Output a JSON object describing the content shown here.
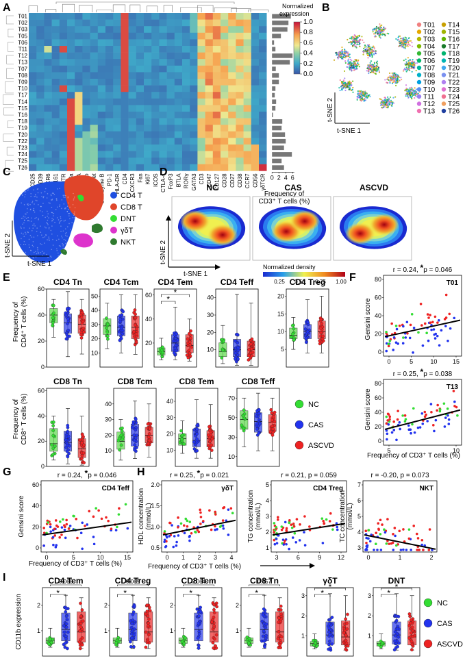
{
  "panel_labels": {
    "A": "A",
    "B": "B",
    "C": "C",
    "D": "D",
    "E": "E",
    "F": "F",
    "G": "G",
    "H": "H",
    "I": "I"
  },
  "colors": {
    "NC": "#33dd33",
    "CAS": "#2233ee",
    "ASCVD": "#ee2222",
    "nc_box": "#66dd55",
    "cas_box": "#3344ee",
    "ascvd_box": "#ee3333"
  },
  "panelA": {
    "legend_title": "Normalized expression",
    "colorbar_ticks": [
      "1.0",
      "0.8",
      "0.6",
      "0.4",
      "0.2",
      "0.0"
    ],
    "row_labels": [
      "T01",
      "T02",
      "T03",
      "T05",
      "T06",
      "T11",
      "T12",
      "T13",
      "T07",
      "T08",
      "T09",
      "T10",
      "T17",
      "T14",
      "T15",
      "T16",
      "T18",
      "T19",
      "T20",
      "T22",
      "T23",
      "T24",
      "T25",
      "T26"
    ],
    "col_labels": [
      "CD25",
      "CD39",
      "CCR6",
      "CD161",
      "GITR",
      "CD8a",
      "CD45RA",
      "CD11b",
      "Tbet",
      "Granzyme B",
      "PD-1",
      "HLA-DR",
      "CD4",
      "CXCR3",
      "Fas",
      "Ki67",
      "ICOS",
      "CTLA-4",
      "FoxP3",
      "BTLA",
      "RORγ",
      "GATA3",
      "CD3",
      "CD47",
      "CD127",
      "CD28",
      "CD27",
      "CD38",
      "CCR7",
      "CD56",
      "γδTCR"
    ],
    "bar_axis_ticks": [
      "0",
      "2",
      "4",
      "6"
    ],
    "bar_axis_label": "Frequency of CD3⁺ T cells (%)",
    "frequency_bars": [
      5.5,
      4.8,
      4.5,
      2.6,
      0.6,
      1.0,
      6.0,
      5.2,
      1.1,
      2.0,
      2.0,
      1.0,
      0.8,
      1.2,
      1.0,
      0.3,
      3.0,
      2.8,
      3.8,
      4.0,
      3.5,
      5.8,
      2.8,
      3.5
    ]
  },
  "panelB": {
    "xlabel": "t-SNE 1",
    "ylabel": "t-SNE 2",
    "clusters": [
      {
        "name": "T01",
        "color": "#f08080"
      },
      {
        "name": "T02",
        "color": "#e6a800"
      },
      {
        "name": "T03",
        "color": "#b5b800"
      },
      {
        "name": "T04",
        "color": "#7fb800"
      },
      {
        "name": "T05",
        "color": "#33b833"
      },
      {
        "name": "T06",
        "color": "#00b86b"
      },
      {
        "name": "T07",
        "color": "#00b89c"
      },
      {
        "name": "T08",
        "color": "#00b0c8"
      },
      {
        "name": "T09",
        "color": "#00a0e0"
      },
      {
        "name": "T10",
        "color": "#5b8ff0"
      },
      {
        "name": "T11",
        "color": "#9b7ff0"
      },
      {
        "name": "T12",
        "color": "#d070e0"
      },
      {
        "name": "T13",
        "color": "#f070b0"
      },
      {
        "name": "T14",
        "color": "#c8a000"
      },
      {
        "name": "T15",
        "color": "#a0b400"
      },
      {
        "name": "T16",
        "color": "#60b400"
      },
      {
        "name": "T17",
        "color": "#1a7a2a"
      },
      {
        "name": "T18",
        "color": "#00b470"
      },
      {
        "name": "T19",
        "color": "#00b4b4"
      },
      {
        "name": "T20",
        "color": "#40a8f0"
      },
      {
        "name": "T21",
        "color": "#7a90f0"
      },
      {
        "name": "T22",
        "color": "#b080f0"
      },
      {
        "name": "T23",
        "color": "#e070d0"
      },
      {
        "name": "T24",
        "color": "#f07090"
      },
      {
        "name": "T25",
        "color": "#f0a060"
      },
      {
        "name": "T26",
        "color": "#1f3fa0"
      }
    ]
  },
  "panelC": {
    "xlabel": "t-SNE 1",
    "ylabel": "t-SNE 2",
    "legend": [
      {
        "name": "CD4 T",
        "color": "#1f4fe0"
      },
      {
        "name": "CD8 T",
        "color": "#e0452a"
      },
      {
        "name": "DNT",
        "color": "#33dd33"
      },
      {
        "name": "γδT",
        "color": "#dd33cc"
      },
      {
        "name": "NKT",
        "color": "#2f7a2f"
      }
    ]
  },
  "panelD": {
    "titles": [
      "NC",
      "CAS",
      "ASCVD"
    ],
    "xlabel": "t-SNE 1",
    "ylabel": "t-SNE 2",
    "colorbar_title": "Normalized density",
    "colorbar_ticks": [
      "0.25",
      "0.50",
      "0.75",
      "1.00"
    ]
  },
  "panelE": {
    "row1_ylabel": "Frequency of CD4⁺ T cells (%)",
    "row2_ylabel": "Frequency of CD8⁺ T cells (%)",
    "legend": [
      "NC",
      "CAS",
      "ASCVD"
    ],
    "plots": [
      {
        "title": "CD4 Tn",
        "ylim": [
          0,
          60
        ],
        "ticks": [
          "0",
          "20",
          "40",
          "60"
        ],
        "medians": [
          40,
          34,
          33
        ],
        "q1": [
          34,
          26,
          26
        ],
        "q3": [
          45,
          41,
          40
        ],
        "lo": [
          23,
          8,
          10
        ],
        "hi": [
          52,
          58,
          52
        ],
        "sig": []
      },
      {
        "title": "CD4 Tcm",
        "ylim": [
          0,
          55
        ],
        "ticks": [
          "10",
          "20",
          "30",
          "40",
          "50"
        ],
        "medians": [
          29,
          28,
          28
        ],
        "q1": [
          23,
          22,
          20
        ],
        "q3": [
          34,
          36,
          36
        ],
        "lo": [
          13,
          10,
          9
        ],
        "hi": [
          45,
          51,
          51
        ],
        "sig": []
      },
      {
        "title": "CD4 Tem",
        "ylim": [
          0,
          65
        ],
        "ticks": [
          "20",
          "40",
          "60"
        ],
        "medians": [
          13,
          20,
          18
        ],
        "q1": [
          10,
          13,
          12
        ],
        "q3": [
          16,
          27,
          27
        ],
        "lo": [
          6,
          6,
          5
        ],
        "hi": [
          24,
          50,
          40
        ],
        "sig": [
          "*",
          "*"
        ]
      },
      {
        "title": "CD4 Teff",
        "ylim": [
          0,
          45
        ],
        "ticks": [
          "10",
          "20",
          "30",
          "40"
        ],
        "medians": [
          9,
          10,
          10
        ],
        "q1": [
          6,
          6,
          6
        ],
        "q3": [
          14,
          16,
          15
        ],
        "lo": [
          2,
          1,
          1
        ],
        "hi": [
          24,
          42,
          37
        ],
        "sig": []
      },
      {
        "title": "CD4 Treg",
        "ylim": [
          0,
          22
        ],
        "ticks": [
          "5",
          "10",
          "15",
          "20"
        ],
        "medians": [
          9,
          10,
          10
        ],
        "q1": [
          8,
          8,
          8
        ],
        "q3": [
          11,
          12,
          13
        ],
        "lo": [
          5,
          4,
          4
        ],
        "hi": [
          14,
          19,
          20
        ],
        "sig": []
      },
      {
        "title": "CD8 Tn",
        "ylim": [
          0,
          62
        ],
        "ticks": [
          "0",
          "20",
          "40",
          "60"
        ],
        "medians": [
          18,
          19,
          14
        ],
        "q1": [
          12,
          12,
          7
        ],
        "q3": [
          30,
          28,
          22
        ],
        "lo": [
          5,
          2,
          1
        ],
        "hi": [
          40,
          46,
          40
        ],
        "sig": []
      },
      {
        "title": "CD8 Tcm",
        "ylim": [
          0,
          50
        ],
        "ticks": [
          "10",
          "20",
          "30",
          "40"
        ],
        "medians": [
          16,
          20,
          20
        ],
        "q1": [
          11,
          13,
          15
        ],
        "q3": [
          22,
          27,
          25
        ],
        "lo": [
          4,
          5,
          6
        ],
        "hi": [
          30,
          42,
          40
        ],
        "sig": []
      },
      {
        "title": "CD8 Tem",
        "ylim": [
          0,
          48
        ],
        "ticks": [
          "10",
          "20",
          "30",
          "40"
        ],
        "medians": [
          17,
          16,
          17
        ],
        "q1": [
          13,
          12,
          12
        ],
        "q3": [
          20,
          23,
          22
        ],
        "lo": [
          8,
          5,
          5
        ],
        "hi": [
          28,
          41,
          38
        ],
        "sig": []
      },
      {
        "title": "CD8 Teff",
        "ylim": [
          0,
          80
        ],
        "ticks": [
          "10",
          "30",
          "50",
          "70"
        ],
        "medians": [
          48,
          46,
          45
        ],
        "q1": [
          38,
          35,
          36
        ],
        "q3": [
          57,
          55,
          53
        ],
        "lo": [
          20,
          16,
          16
        ],
        "hi": [
          70,
          75,
          70
        ],
        "sig": []
      }
    ]
  },
  "panelF": {
    "ylabel": "Gensini score",
    "xlabel": "Frequency of CD3⁺ T cells (%)",
    "top": {
      "stat": "r = 0.24, ",
      "star": "*",
      "p": "p = 0.046",
      "tag": "T01",
      "xticks": [
        "0",
        "5",
        "10",
        "15"
      ],
      "yticks": [
        "0",
        "20",
        "40",
        "60",
        "80"
      ]
    },
    "bottom": {
      "stat": "r = 0.25, ",
      "star": "*",
      "p": "p = 0.038",
      "tag": "T13",
      "xticks": [
        "5",
        "10"
      ],
      "yticks": [
        "0",
        "20",
        "40",
        "60",
        "80"
      ]
    }
  },
  "panelG": {
    "stat": "r = 0.24, ",
    "star": "*",
    "p": "p = 0.046",
    "tag": "CD4 Teff",
    "ylabel": "Gensini score",
    "xlabel": "Frequency of CD3⁺ T cells (%)",
    "xticks": [
      "0",
      "5",
      "10",
      "15"
    ],
    "yticks": [
      "0",
      "20",
      "40",
      "60"
    ]
  },
  "panelH": {
    "xlabel": "Frequency of CD3⁺ T cells (%)",
    "plots": [
      {
        "stat": "r = 0.25, ",
        "star": "*",
        "p": "p = 0.021",
        "tag": "γδT",
        "ylabel": "HDL concentration (mmol/L)",
        "xticks": [
          "0",
          "1",
          "2",
          "3",
          "4"
        ],
        "yticks": [
          "0.5",
          "1.0",
          "1.5",
          "2.0"
        ]
      },
      {
        "stat": "r = 0.21, p = 0.059",
        "star": "",
        "p": "",
        "tag": "CD4 Treg",
        "ylabel": "TG concentration (mmol/L)",
        "xticks": [
          "3",
          "6",
          "9",
          "12"
        ],
        "yticks": [
          "1",
          "2",
          "3",
          "4",
          "5"
        ]
      },
      {
        "stat": "r = -0.20, p = 0.073",
        "star": "",
        "p": "",
        "tag": "NKT",
        "ylabel": "TC concentration (mmol/L)",
        "xticks": [
          "0",
          "1",
          "2"
        ],
        "yticks": [
          "3",
          "4",
          "5",
          "6",
          "7"
        ]
      }
    ]
  },
  "panelI": {
    "ylabel": "CD11b expression",
    "legend": [
      "NC",
      "CAS",
      "ASCVD"
    ],
    "plots": [
      {
        "title": "CD4 Tem",
        "top_p": "0.066",
        "stars": [
          "*"
        ],
        "ticks": [
          "1",
          "2"
        ],
        "ymax": 2.7
      },
      {
        "title": "CD4 Treg",
        "top_p": "0.065",
        "stars": [
          "*"
        ],
        "ticks": [
          "1",
          "2"
        ],
        "ymax": 2.7
      },
      {
        "title": "CD8 Tem",
        "top_p": "0.064",
        "stars": [
          "*"
        ],
        "ticks": [
          "1",
          "2"
        ],
        "ymax": 2.7
      },
      {
        "title": "CD8 Tn",
        "top_p": "0.057",
        "stars": [
          "*"
        ],
        "ticks": [
          "1",
          "2"
        ],
        "ymax": 2.7
      },
      {
        "title": "γδT",
        "top_p": "",
        "stars": [
          "*",
          "*"
        ],
        "ticks": [
          "1",
          "2",
          "3"
        ],
        "ymax": 3.4
      },
      {
        "title": "DNT",
        "top_p": "",
        "stars": [
          "*",
          "*"
        ],
        "ticks": [
          "1",
          "2",
          "3"
        ],
        "ymax": 3.4
      }
    ]
  }
}
